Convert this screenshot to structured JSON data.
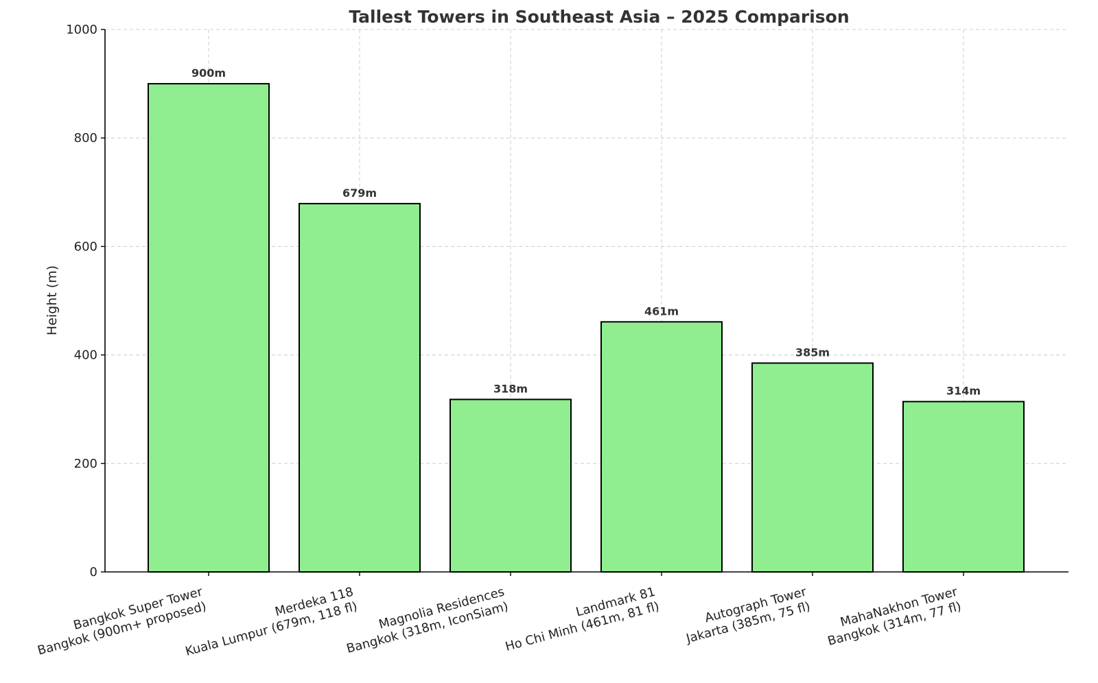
{
  "chart_data": {
    "type": "bar",
    "title": "Tallest Towers in Southeast Asia – 2025 Comparison",
    "xlabel": "",
    "ylabel": "Height (m)",
    "ylim": [
      0,
      1000
    ],
    "yticks": [
      0,
      200,
      400,
      600,
      800,
      1000
    ],
    "grid": true,
    "categories": [
      [
        "Bangkok Super Tower",
        "Bangkok (900m+ proposed)"
      ],
      [
        "Merdeka 118",
        "Kuala Lumpur (679m, 118 fl)"
      ],
      [
        "Magnolia Residences",
        "Bangkok (318m, IconSiam)"
      ],
      [
        "Landmark 81",
        "Ho Chi Minh (461m, 81 fl)"
      ],
      [
        "Autograph Tower",
        "Jakarta (385m, 75 fl)"
      ],
      [
        "MahaNakhon Tower",
        "Bangkok (314m, 77 fl)"
      ]
    ],
    "values": [
      900,
      679,
      318,
      461,
      385,
      314
    ],
    "data_labels": [
      "900m",
      "679m",
      "318m",
      "461m",
      "385m",
      "314m"
    ],
    "bar_color": "#90ee90",
    "edge_color": "#000000"
  }
}
